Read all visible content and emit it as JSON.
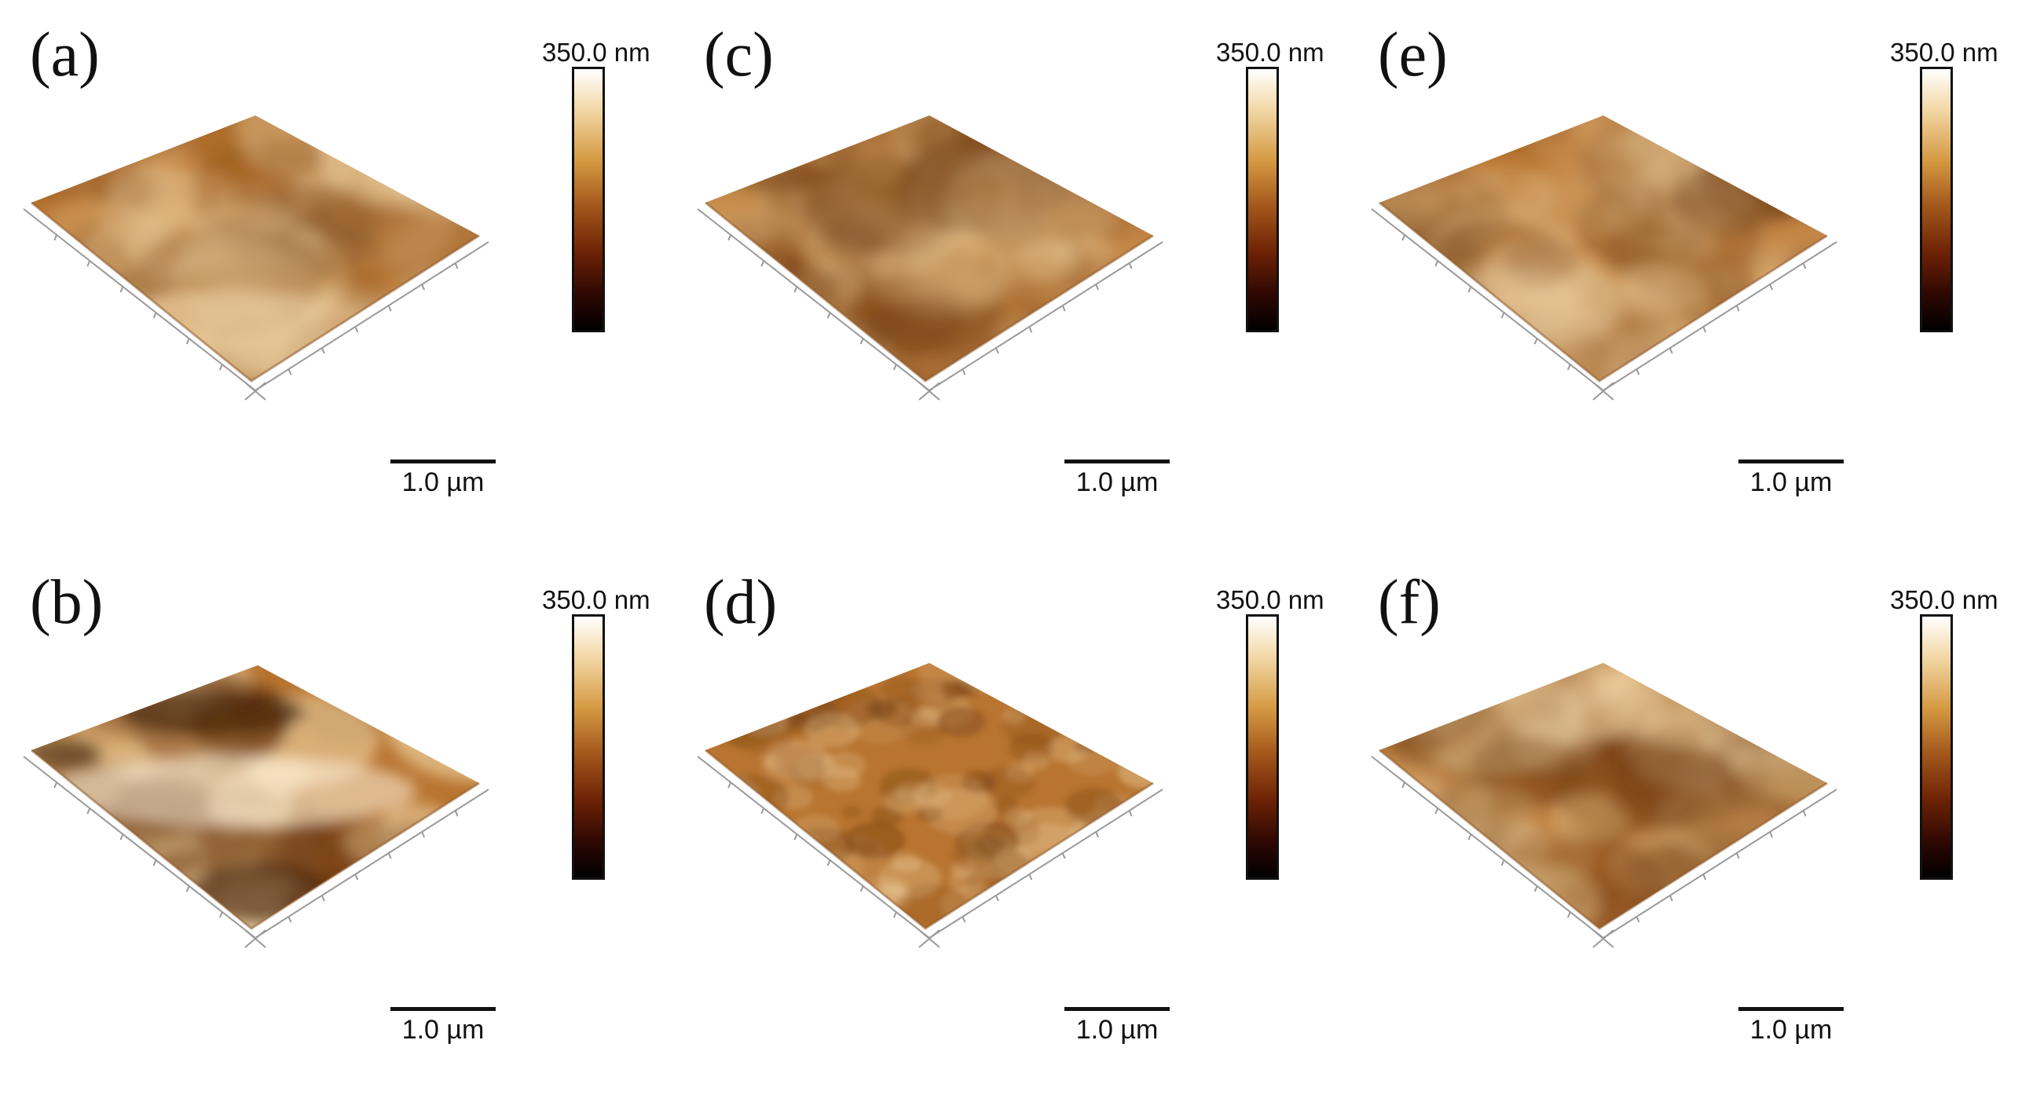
{
  "figure": {
    "panels": [
      {
        "label": "(a)",
        "scale_max": "350.0 nm",
        "scale_bar": "1.0 µm"
      },
      {
        "label": "(c)",
        "scale_max": "350.0 nm",
        "scale_bar": "1.0 µm"
      },
      {
        "label": "(e)",
        "scale_max": "350.0 nm",
        "scale_bar": "1.0 µm"
      },
      {
        "label": "(b)",
        "scale_max": "350.0 nm",
        "scale_bar": "1.0 µm"
      },
      {
        "label": "(d)",
        "scale_max": "350.0 nm",
        "scale_bar": "1.0 µm"
      },
      {
        "label": "(f)",
        "scale_max": "350.0 nm",
        "scale_bar": "1.0 µm"
      }
    ]
  },
  "colors": {
    "surface_base": "#b87430",
    "surface_dark": "#6e3a10",
    "surface_light": "#f2d8a8",
    "colorbar_top": "#ffffff",
    "colorbar_bottom": "#000000",
    "text": "#111111"
  }
}
